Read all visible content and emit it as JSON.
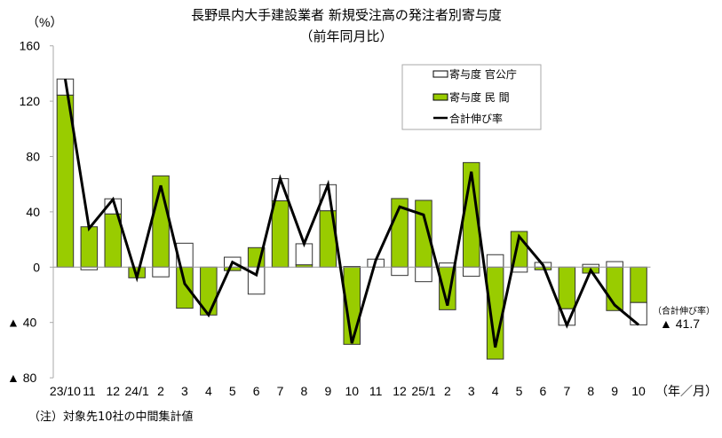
{
  "title": "長野県内大手建設業者 新規受注高の発注者別寄与度",
  "subtitle": "（前年同月比）",
  "note": "（注）対象先10社の中間集計値",
  "colors": {
    "public": "#ffffff",
    "private": "#99cc00",
    "line": "#000000"
  },
  "chart_data": {
    "type": "bar",
    "stacked": true,
    "title": "長野県内大手建設業者 新規受注高の発注者別寄与度",
    "subtitle": "（前年同月比）",
    "ylabel": "（%）",
    "xlabel": "（年／月）",
    "ylim": [
      -80,
      160
    ],
    "yticks": [
      160,
      120,
      80,
      40,
      0,
      -40,
      -80
    ],
    "ytick_labels": [
      "160",
      "120",
      "80",
      "40",
      "0",
      "▲ 40",
      "▲ 80"
    ],
    "grid": false,
    "legend": "top-right",
    "categories": [
      "23/10",
      "11",
      "12",
      "24/1",
      "2",
      "3",
      "4",
      "5",
      "6",
      "7",
      "8",
      "9",
      "10",
      "11",
      "12",
      "25/1",
      "2",
      "3",
      "4",
      "5",
      "6",
      "7",
      "8",
      "9",
      "10"
    ],
    "series": [
      {
        "name": "寄与度 民 間",
        "type": "bar",
        "values": [
          124.4,
          29.2,
          38.5,
          -7.7,
          66,
          -29.7,
          -34.6,
          -2.5,
          14.1,
          48,
          1.7,
          40.8,
          -55.8,
          0,
          49.6,
          48.3,
          -30.8,
          75.6,
          -66.5,
          25.8,
          -1.9,
          -30.1,
          -4.3,
          -31.4,
          -25.6
        ]
      },
      {
        "name": "寄与度 官公庁",
        "type": "bar",
        "values": [
          11.6,
          -1.9,
          10.9,
          0,
          -7,
          17.3,
          0,
          7.2,
          -19.5,
          16,
          15.2,
          18.8,
          0.5,
          5.8,
          -6,
          -10.5,
          3,
          -6.6,
          9,
          -3.6,
          3.4,
          -11.9,
          2,
          4,
          -16.1
        ]
      },
      {
        "name": "合計伸び率",
        "type": "line",
        "values": [
          136,
          28,
          49,
          -7.5,
          59,
          -12,
          -34.6,
          3.6,
          -5.6,
          64,
          16.9,
          59.6,
          -55,
          5,
          43.6,
          37.8,
          -27.8,
          69,
          -58,
          22.2,
          1.5,
          -42,
          -2.3,
          -27.4,
          -41.7
        ]
      }
    ],
    "annotation": {
      "label": "（合計伸び率）",
      "value": "▲ 41.7"
    }
  }
}
